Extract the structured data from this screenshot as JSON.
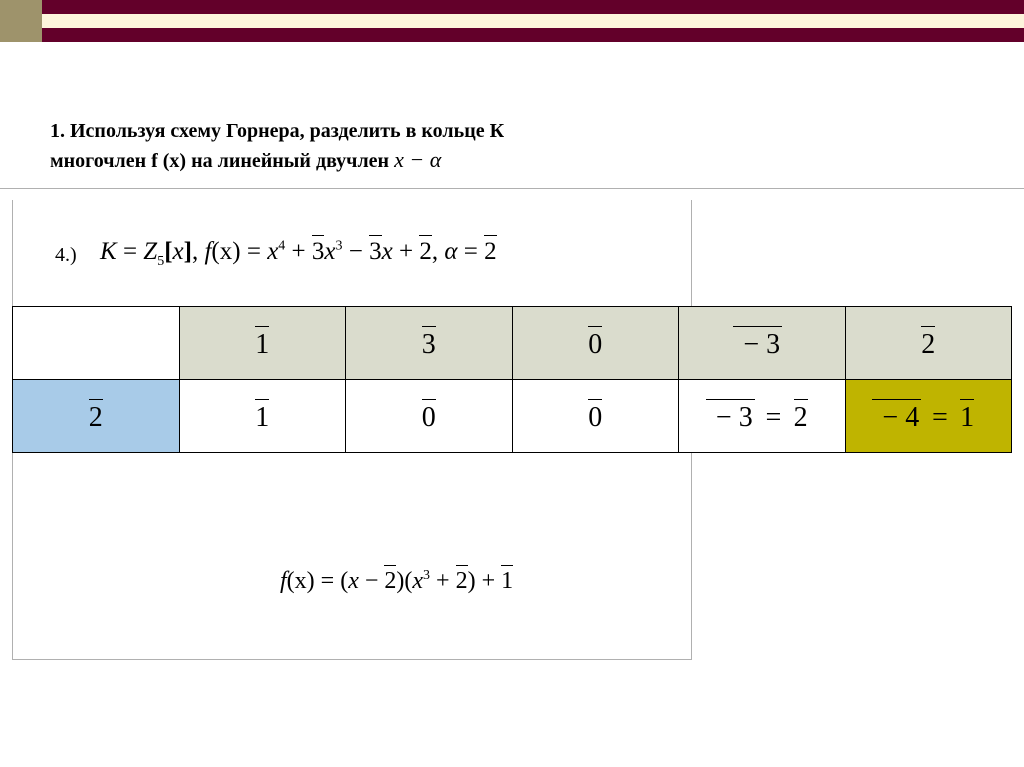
{
  "bands": {
    "outer_color": "#63002a",
    "inner_color": "#fdf5dc",
    "corner_color": "#9e936b"
  },
  "title": {
    "line1": "1. Используя схему Горнера,  разделить в кольце К",
    "line2_prefix": "многочлен f (x)  на линейный двучлен   ",
    "expr_var": "x",
    "expr_minus": " − ",
    "expr_alpha": "α"
  },
  "item": {
    "label": "4.)",
    "K": "K",
    "eq": " = ",
    "Z": "Z",
    "Zsub": "5",
    "lbr": "[",
    "x": "x",
    "rbr": "]",
    "comma": ", ",
    "f": "f",
    "xarg": "(x)",
    "poly_x4_base": "x",
    "poly_x4_exp": "4",
    "plus": " + ",
    "c3": "3",
    "poly_x3_base": "x",
    "poly_x3_exp": "3",
    "minus": " − ",
    "c3b": "3",
    "c2": "2",
    "alpha": "α",
    "alpha_val": "2"
  },
  "table": {
    "header_bg": "#dadccd",
    "alpha_bg": "#a8cbe8",
    "remainder_bg": "#bfb400",
    "row0": {
      "c0": "",
      "c1": "1",
      "c2": "3",
      "c3": "0",
      "c4_prefix": "− ",
      "c4_val": "3",
      "c5": "2"
    },
    "row1": {
      "alpha": "2",
      "c1": "1",
      "c2": "0",
      "c3": "0",
      "c4_lhs_prefix": "− ",
      "c4_lhs_val": "3",
      "c4_eq": " = ",
      "c4_rhs": "2",
      "c5_lhs_prefix": "− ",
      "c5_lhs_val": "4",
      "c5_eq": " = ",
      "c5_rhs": "1"
    }
  },
  "result": {
    "f": "f",
    "xarg": "(x)",
    "eq": " = ",
    "open": "(",
    "x": "x",
    "minus": " − ",
    "two": "2",
    "close_open": ")(",
    "x3_base": "x",
    "x3_exp": "3",
    "plus": " + ",
    "two2": "2",
    "close": ")",
    "one": "1"
  }
}
